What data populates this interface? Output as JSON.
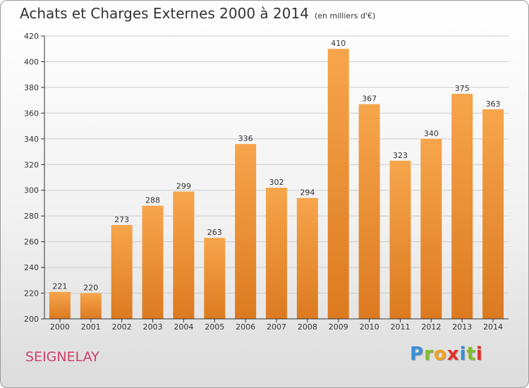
{
  "header": {
    "title": "Achats et Charges Externes 2000 à 2014",
    "unit": "(en milliers d'€)"
  },
  "footer": {
    "town": "SEIGNELAY",
    "logo_letters": [
      "P",
      "r",
      "o",
      "x",
      "i",
      "t",
      "i"
    ],
    "logo_colors": [
      "#3a8fd8",
      "#7fbf2a",
      "#f2a21c",
      "#e5302a",
      "#3a8fd8",
      "#7fbf2a",
      "#e5302a"
    ]
  },
  "colors": {
    "bar_light": "#f7a54c",
    "bar_dark": "#dc7a20",
    "grid": "#cccccc",
    "axis": "#333333"
  },
  "chart_data": {
    "type": "bar",
    "title": "Achats et Charges Externes 2000 à 2014",
    "subtitle": "(en milliers d'€)",
    "categories": [
      "2000",
      "2001",
      "2002",
      "2003",
      "2004",
      "2005",
      "2006",
      "2007",
      "2008",
      "2009",
      "2010",
      "2011",
      "2012",
      "2013",
      "2014"
    ],
    "values": [
      221,
      220,
      273,
      288,
      299,
      263,
      336,
      302,
      294,
      410,
      367,
      323,
      340,
      375,
      363
    ],
    "ylim": [
      200,
      420
    ],
    "yticks": [
      200,
      220,
      240,
      260,
      280,
      300,
      320,
      340,
      360,
      380,
      400,
      420
    ],
    "grid": true,
    "legend": "none"
  }
}
